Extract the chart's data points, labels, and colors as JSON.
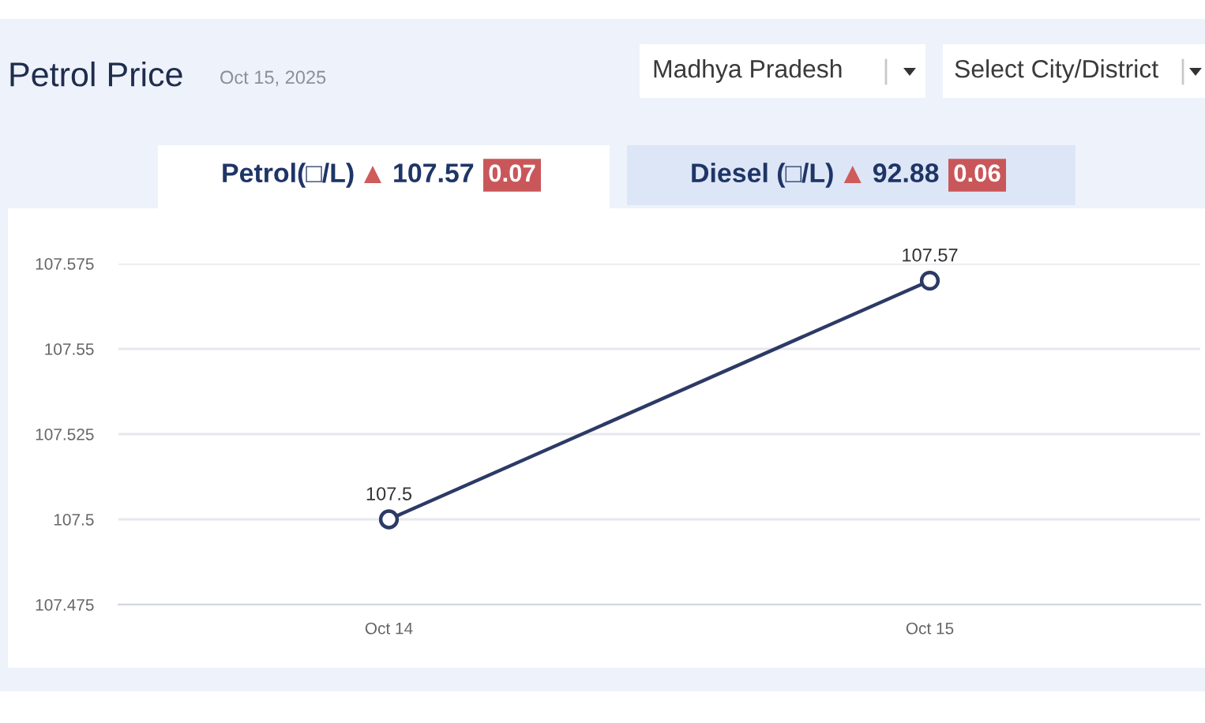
{
  "chart_data": {
    "type": "line",
    "title": "Petrol Price",
    "subtitle": "Oct 15, 2025",
    "categories": [
      "Oct 14",
      "Oct 15"
    ],
    "series": [
      {
        "color": "#2c3a66",
        "values": [
          107.5,
          107.57
        ]
      }
    ],
    "ylim": [
      107.475,
      107.575
    ],
    "yticks": [
      107.475,
      107.5,
      107.525,
      107.55,
      107.575
    ],
    "grid": "y",
    "marker": "circle",
    "line_style": "solid",
    "data_labels": true,
    "annotations": [
      "Madhya Pradesh",
      "Select City/District",
      "Petrol(□/L)",
      "107.57",
      "0.07",
      "Diesel (□/L)",
      "92.88",
      "0.06"
    ]
  }
}
